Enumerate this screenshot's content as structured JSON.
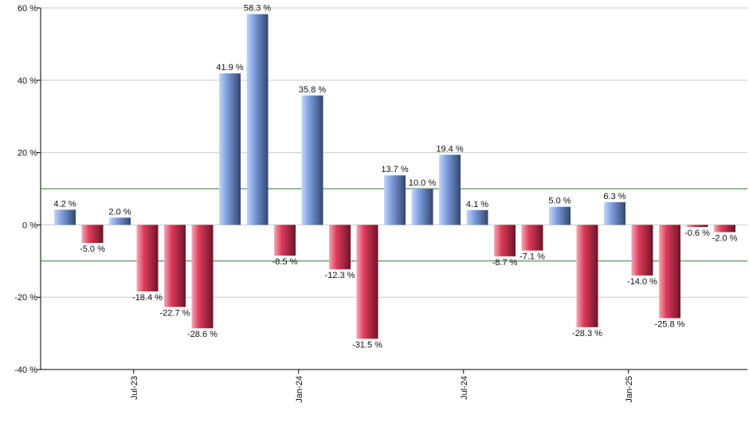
{
  "chart_data": {
    "type": "bar",
    "title": "",
    "xlabel": "",
    "ylabel": "",
    "ylim": [
      -40,
      60
    ],
    "yticks": [
      -40,
      -20,
      0,
      20,
      40,
      60
    ],
    "ytick_labels": [
      "-40 %",
      "-20 %",
      "0 %",
      "20 %",
      "40 %",
      "60 %"
    ],
    "grid": "horizontal",
    "reference_lines": [
      10,
      -10
    ],
    "values": [
      4.2,
      -5.0,
      2.0,
      -18.4,
      -22.7,
      -28.6,
      41.9,
      58.3,
      -8.5,
      35.8,
      -12.3,
      -31.5,
      13.7,
      10.0,
      19.4,
      4.1,
      -8.7,
      -7.1,
      5.0,
      -28.3,
      6.3,
      -14.0,
      -25.8,
      -0.6,
      -2.0
    ],
    "data_labels": [
      "4.2 %",
      "-5.0 %",
      "2.0 %",
      "-18.4 %",
      "-22.7 %",
      "-28.6 %",
      "41.9 %",
      "58.3 %",
      "-8.5 %",
      "35.8 %",
      "-12.3 %",
      "-31.5 %",
      "13.7 %",
      "10.0 %",
      "19.4 %",
      "4.1 %",
      "-8.7 %",
      "-7.1 %",
      "5.0 %",
      "-28.3 %",
      "6.3 %",
      "-14.0 %",
      "-25.8 %",
      "-0.6 %",
      "-2.0 %"
    ],
    "x_ticks": [
      {
        "label": "Jul-23",
        "after_bar": 2
      },
      {
        "label": "Jan-24",
        "after_bar": 8
      },
      {
        "label": "Jul-24",
        "after_bar": 14
      },
      {
        "label": "Jan-25",
        "after_bar": 20
      }
    ],
    "colors": {
      "positive_light": "#c4d6f8",
      "positive_mid": "#7e9ee0",
      "positive_dark": "#33466e",
      "negative_light": "#f5a8b6",
      "negative_mid": "#dd3a5a",
      "negative_dark": "#6e1428",
      "grid": "#cccccc",
      "reference": "#2e7d32",
      "axis": "#000000"
    }
  }
}
